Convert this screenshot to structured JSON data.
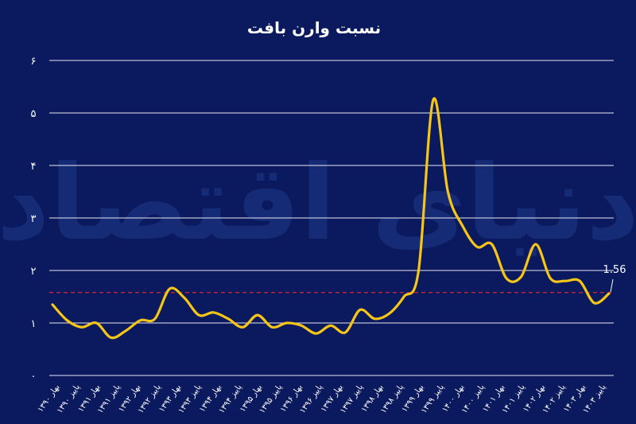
{
  "chart_data": {
    "type": "line",
    "title": "نسبت وارن بافت",
    "xlabel": "",
    "ylabel": "",
    "ylim": [
      0,
      6
    ],
    "yticks": [
      "۰",
      "۱",
      "۲",
      "۳",
      "۴",
      "۵",
      "۶"
    ],
    "grid": "horizontal",
    "watermark": "دنیای اقتصاد",
    "x_tick_labels": [
      "بهار ۱۳۹۰",
      "پاییز ۱۳۹۰",
      "بهار ۱۳۹۱",
      "پاییز ۱۳۹۱",
      "بهار ۱۳۹۲",
      "پاییز ۱۳۹۲",
      "بهار ۱۳۹۳",
      "پاییز ۱۳۹۳",
      "بهار ۱۳۹۴",
      "پاییز ۱۳۹۴",
      "بهار ۱۳۹۵",
      "پاییز ۱۳۹۵",
      "بهار ۱۳۹۶",
      "پاییز ۱۳۹۶",
      "بهار ۱۳۹۷",
      "پاییز ۱۳۹۷",
      "بهار ۱۳۹۸",
      "پاییز ۱۳۹۸",
      "بهار ۱۳۹۹",
      "پاییز ۱۳۹۹",
      "بهار ۱۴۰۰",
      "پاییز ۱۴۰۰",
      "بهار ۱۴۰۱",
      "پاییز ۱۴۰۱",
      "بهار ۱۴۰۲",
      "پاییز ۱۴۰۲",
      "بهار ۱۴۰۳",
      "پاییز ۱۴۰۳"
    ],
    "series": [
      {
        "color": "#f5c518",
        "values": [
          1.35,
          1.05,
          0.92,
          1.0,
          0.72,
          0.85,
          1.05,
          1.08,
          1.65,
          1.48,
          1.15,
          1.2,
          1.08,
          0.92,
          1.15,
          0.92,
          1.0,
          0.95,
          0.8,
          0.95,
          0.82,
          1.25,
          1.08,
          1.18,
          1.5,
          2.0,
          5.25,
          3.5,
          2.85,
          2.45,
          2.5,
          1.85,
          1.88,
          2.5,
          1.85,
          1.8,
          1.8,
          1.38,
          1.56
        ]
      }
    ],
    "reference_line": {
      "value": 1.58,
      "color": "#d9262e",
      "style": "dashed"
    },
    "annotation": {
      "text": "1.56",
      "value": 1.56
    },
    "colors": {
      "background": "#0b1a5e",
      "line": "#f5c518",
      "grid": "#ffffff",
      "text": "#ffffff",
      "watermark": "#1f3a8a"
    }
  }
}
